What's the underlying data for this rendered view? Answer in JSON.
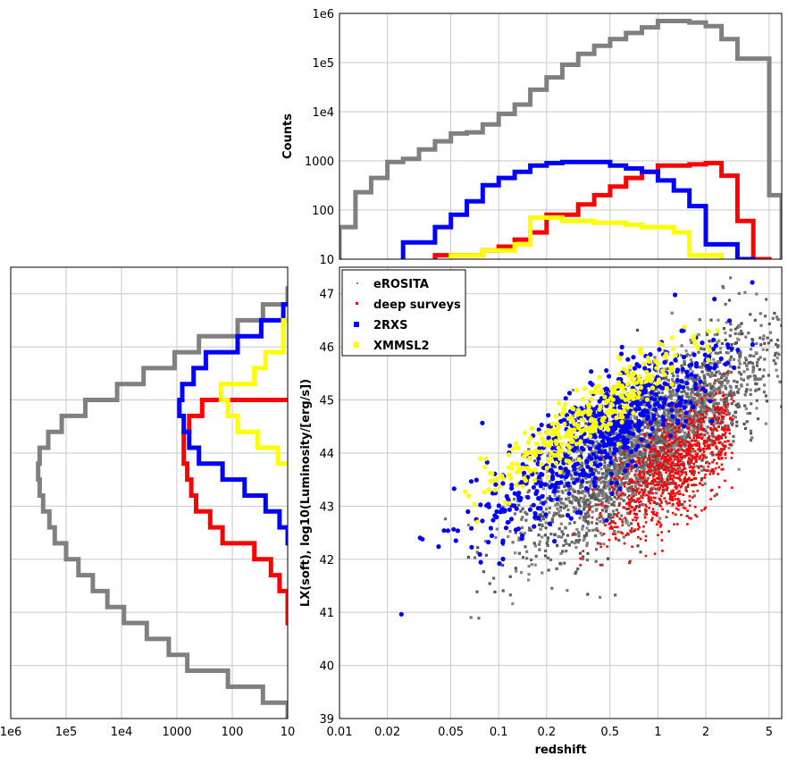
{
  "chart_data": [
    {
      "type": "line",
      "panel": "top-histogram",
      "xscale": "log",
      "yscale": "log",
      "xlim": [
        0.01,
        6
      ],
      "ylim": [
        10,
        1000000
      ],
      "ylabel": "Counts",
      "yticks": [
        "10",
        "100",
        "1000",
        "1e4",
        "1e5",
        "1e6"
      ],
      "step": true,
      "edges": [
        0.01,
        0.0126,
        0.0158,
        0.02,
        0.0251,
        0.0316,
        0.0398,
        0.0501,
        0.0631,
        0.0794,
        0.1,
        0.126,
        0.158,
        0.2,
        0.251,
        0.316,
        0.398,
        0.501,
        0.631,
        0.794,
        1.0,
        1.26,
        1.58,
        2.0,
        2.51,
        3.16,
        3.98,
        5.01,
        6.0
      ],
      "series": [
        {
          "name": "eROSITA",
          "color": "#808080",
          "values": [
            45,
            230,
            450,
            950,
            1100,
            1700,
            2500,
            3600,
            3800,
            5500,
            9000,
            14000,
            28000,
            50000,
            90000,
            150000,
            220000,
            300000,
            400000,
            520000,
            700000,
            700000,
            650000,
            550000,
            300000,
            120000,
            120000,
            200
          ]
        },
        {
          "name": "deep surveys",
          "color": "#ff0000",
          "values": [
            null,
            null,
            null,
            null,
            null,
            null,
            12,
            12,
            12,
            15,
            18,
            25,
            35,
            80,
            80,
            130,
            200,
            300,
            450,
            600,
            800,
            800,
            850,
            900,
            500,
            60,
            10,
            null
          ]
        },
        {
          "name": "2RXS",
          "color": "#0000ff",
          "values": [
            null,
            null,
            null,
            null,
            22,
            22,
            45,
            80,
            150,
            320,
            450,
            600,
            800,
            900,
            950,
            950,
            950,
            800,
            700,
            600,
            400,
            250,
            120,
            20,
            20,
            10,
            null,
            null
          ]
        },
        {
          "name": "XMMSL2",
          "color": "#ffff00",
          "values": [
            null,
            null,
            null,
            null,
            null,
            null,
            null,
            12,
            12,
            15,
            15,
            20,
            70,
            70,
            60,
            60,
            55,
            55,
            50,
            45,
            45,
            35,
            12,
            12,
            null,
            null,
            null,
            null
          ]
        }
      ]
    },
    {
      "type": "scatter",
      "panel": "main-scatter",
      "xscale": "log",
      "xlim": [
        0.01,
        6
      ],
      "ylim": [
        39,
        47.5
      ],
      "xlabel": "redshift",
      "ylabel": "LX(soft), log10(Luminosity/[erg/s])",
      "xticks": [
        "0.01",
        "0.02",
        "0.05",
        "0.1",
        "0.2",
        "0.5",
        "1",
        "2",
        "5"
      ],
      "yticks": [
        "39",
        "40",
        "41",
        "42",
        "43",
        "44",
        "45",
        "46",
        "47"
      ],
      "legend_position": "top-left",
      "legend": [
        "eROSITA",
        "deep surveys",
        "2RXS",
        "XMMSL2"
      ],
      "series": [
        {
          "name": "eROSITA",
          "color": "#808080",
          "z_range": [
            0.01,
            6
          ],
          "lx_mean_at_z1": 44.3,
          "lx_spread": 0.6
        },
        {
          "name": "deep surveys",
          "color": "#ff0000",
          "z_range": [
            0.04,
            3
          ],
          "lx_mean_at_z1": 43.5,
          "lx_spread": 0.5
        },
        {
          "name": "2RXS",
          "color": "#0000ff",
          "z_range": [
            0.015,
            4
          ],
          "lx_mean_at_z1": 45.1,
          "lx_spread": 0.5
        },
        {
          "name": "XMMSL2",
          "color": "#ffff00",
          "z_range": [
            0.015,
            2.6
          ],
          "lx_mean_at_z1": 45.6,
          "lx_spread": 0.3
        }
      ]
    },
    {
      "type": "line",
      "panel": "left-histogram",
      "xscale": "log",
      "xaxis_reversed": true,
      "xlim": [
        1000000,
        10
      ],
      "ylim": [
        39,
        47.5
      ],
      "xticks": [
        "1e6",
        "1e5",
        "1e4",
        "1000",
        "100",
        "10"
      ],
      "step": true,
      "edges": [
        39.0,
        39.3,
        39.6,
        39.9,
        40.2,
        40.5,
        40.8,
        41.1,
        41.4,
        41.7,
        42.0,
        42.3,
        42.6,
        42.9,
        43.2,
        43.5,
        43.8,
        44.1,
        44.4,
        44.7,
        45.0,
        45.3,
        45.6,
        45.9,
        46.2,
        46.5,
        46.8,
        47.1
      ],
      "series": [
        {
          "name": "eROSITA",
          "color": "#808080",
          "values": [
            10,
            28,
            120,
            650,
            1400,
            3500,
            9000,
            18000,
            33000,
            60000,
            100000,
            160000,
            200000,
            260000,
            300000,
            320000,
            300000,
            210000,
            120000,
            45000,
            12000,
            4000,
            1100,
            400,
            80,
            28,
            10
          ]
        },
        {
          "name": "deep surveys",
          "color": "#ff0000",
          "values": [
            null,
            null,
            null,
            null,
            null,
            8,
            10,
            10,
            14,
            20,
            40,
            150,
            250,
            450,
            550,
            650,
            750,
            750,
            600,
            350,
            8,
            8,
            8,
            8,
            null,
            null,
            null
          ]
        },
        {
          "name": "2RXS",
          "color": "#0000ff",
          "values": [
            null,
            null,
            null,
            null,
            null,
            null,
            null,
            null,
            null,
            null,
            8,
            10,
            14,
            25,
            60,
            150,
            400,
            600,
            750,
            900,
            800,
            500,
            300,
            80,
            30,
            12,
            8
          ]
        },
        {
          "name": "XMMSL2",
          "color": "#ffff00",
          "values": [
            null,
            null,
            null,
            null,
            null,
            null,
            null,
            null,
            null,
            null,
            null,
            null,
            null,
            8,
            8,
            8,
            15,
            35,
            80,
            120,
            160,
            40,
            25,
            12,
            12,
            9,
            8
          ]
        }
      ]
    }
  ]
}
